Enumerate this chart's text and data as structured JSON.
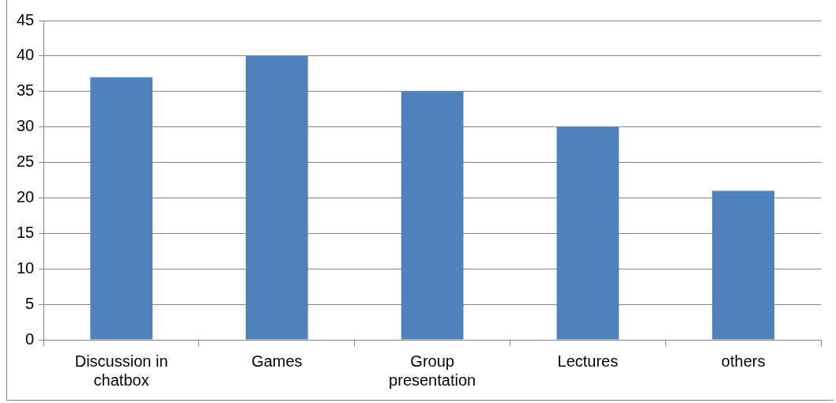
{
  "chart_data": {
    "type": "bar",
    "categories": [
      "Discussion in chatbox",
      "Games",
      "Group presentation",
      "Lectures",
      "others"
    ],
    "values": [
      37,
      40,
      35,
      30,
      21
    ],
    "color": "#4f81bd",
    "ylim": [
      0,
      45
    ],
    "yticks": [
      0,
      5,
      10,
      15,
      20,
      25,
      30,
      35,
      40,
      45
    ],
    "grid": "y",
    "legend": false
  }
}
